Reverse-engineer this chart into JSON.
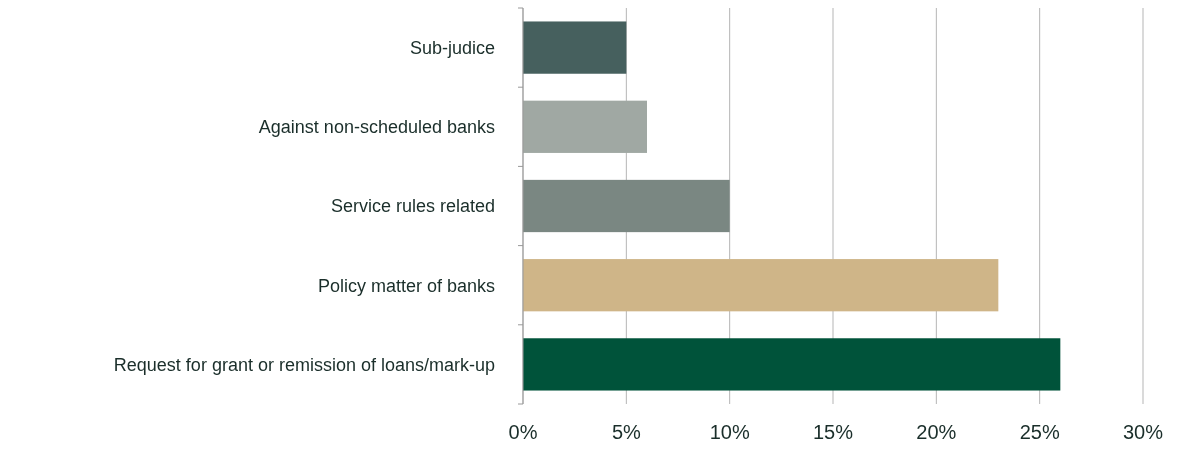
{
  "chart_data": {
    "type": "bar",
    "orientation": "horizontal",
    "categories": [
      "Sub-judice",
      "Against non-scheduled banks",
      "Service rules related",
      "Policy matter of banks",
      "Request for grant or remission of loans/mark-up"
    ],
    "values": [
      5,
      6,
      10,
      23,
      26
    ],
    "colors": [
      "#46605e",
      "#a0a8a3",
      "#7a8782",
      "#cfb588",
      "#00533a"
    ],
    "xlim": [
      0,
      30
    ],
    "xticks": [
      {
        "value": 0,
        "label": "0%"
      },
      {
        "value": 5,
        "label": "5%"
      },
      {
        "value": 10,
        "label": "10%"
      },
      {
        "value": 15,
        "label": "15%"
      },
      {
        "value": 20,
        "label": "20%"
      },
      {
        "value": 25,
        "label": "25%"
      },
      {
        "value": 30,
        "label": "30%"
      }
    ],
    "grid": "x"
  }
}
